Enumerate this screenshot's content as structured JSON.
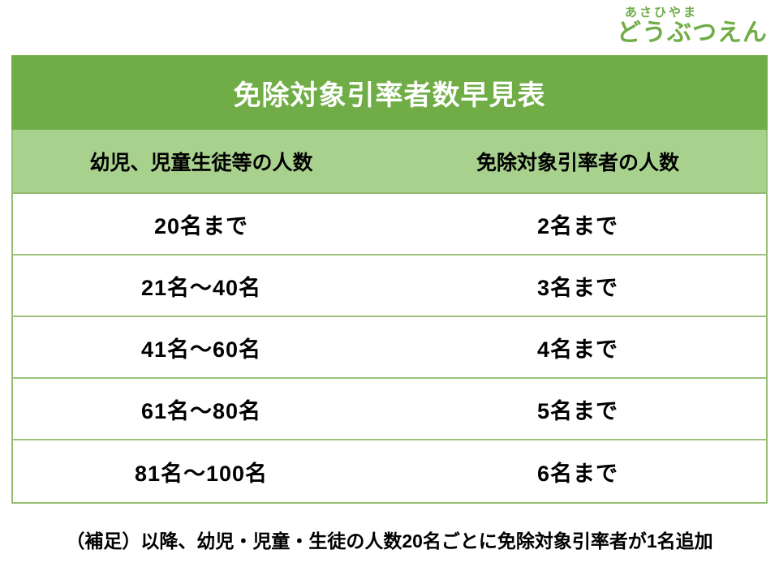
{
  "logo": {
    "top": "あさひやま",
    "bottom": "どうぶつえん",
    "color": "#70AD47"
  },
  "table": {
    "title": "免除対象引率者数早見表",
    "columns": [
      "幼児、児童生徒等の人数",
      "免除対象引率者の人数"
    ],
    "rows": [
      [
        "20名まで",
        "2名まで"
      ],
      [
        "21名～40名",
        "3名まで"
      ],
      [
        "41名～60名",
        "4名まで"
      ],
      [
        "61名～80名",
        "5名まで"
      ],
      [
        "81名～100名",
        "6名まで"
      ]
    ]
  },
  "footnote": "（補足）以降、幼児・児童・生徒の人数20名ごとに免除対象引率者が1名追加",
  "colors": {
    "title_bg": "#70AD47",
    "title_text": "#FFFFFF",
    "header_bg": "#A9D18E",
    "border": "#94BE72",
    "body_text": "#000000"
  }
}
